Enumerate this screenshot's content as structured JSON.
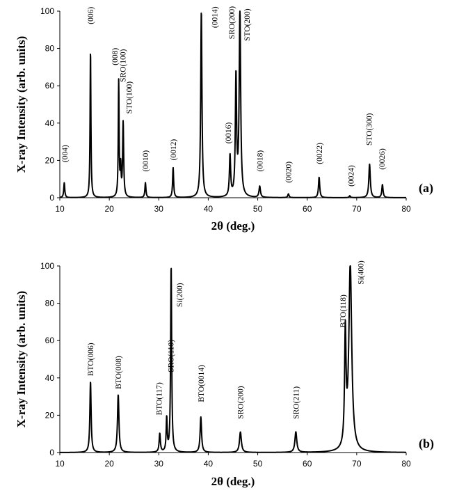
{
  "chart_data": [
    {
      "type": "line",
      "panel_label": "(a)",
      "xlabel": "2θ (deg.)",
      "ylabel": "X-ray Intensity (arb. units)",
      "xlim": [
        10,
        80
      ],
      "ylim": [
        0,
        100
      ],
      "xticks": [
        10,
        20,
        30,
        40,
        50,
        60,
        70,
        80
      ],
      "yticks": [
        0,
        20,
        40,
        60,
        80,
        100
      ],
      "grid": false,
      "peaks": [
        {
          "x": 10.9,
          "y": 8,
          "w": 0.25,
          "label": "(004)",
          "lx": 11.0,
          "ly": 19
        },
        {
          "x": 16.2,
          "y": 79,
          "w": 0.2,
          "label": "(006)",
          "lx": 16.2,
          "ly": 93
        },
        {
          "x": 21.9,
          "y": 62,
          "w": 0.2,
          "label": "(008)",
          "lx": 21.1,
          "ly": 71
        },
        {
          "x": 22.3,
          "y": 15,
          "w": 0.2,
          "label": "",
          "lx": 0,
          "ly": 0
        },
        {
          "x": 22.8,
          "y": 40,
          "w": 0.25,
          "label": "SRO(100)",
          "lx": 22.7,
          "ly": 62
        },
        {
          "x": 22.8,
          "y": 0,
          "w": 0.25,
          "label": "STO(100)",
          "lx": 24.0,
          "ly": 45
        },
        {
          "x": 27.3,
          "y": 8,
          "w": 0.25,
          "label": "(0010)",
          "lx": 27.3,
          "ly": 14
        },
        {
          "x": 32.9,
          "y": 16,
          "w": 0.25,
          "label": "(0012)",
          "lx": 32.9,
          "ly": 20
        },
        {
          "x": 38.6,
          "y": 100,
          "w": 0.3,
          "label": "(0014)",
          "lx": 41.3,
          "ly": 91
        },
        {
          "x": 44.4,
          "y": 22,
          "w": 0.3,
          "label": "(0016)",
          "lx": 44.0,
          "ly": 29
        },
        {
          "x": 45.6,
          "y": 64,
          "w": 0.3,
          "label": "SRO(200)",
          "lx": 44.7,
          "ly": 85
        },
        {
          "x": 46.4,
          "y": 100,
          "w": 0.35,
          "label": "STO(200)",
          "lx": 47.8,
          "ly": 84
        },
        {
          "x": 50.4,
          "y": 6,
          "w": 0.35,
          "label": "(0018)",
          "lx": 50.4,
          "ly": 14
        },
        {
          "x": 56.2,
          "y": 2,
          "w": 0.3,
          "label": "(0020)",
          "lx": 56.2,
          "ly": 8
        },
        {
          "x": 62.4,
          "y": 11,
          "w": 0.3,
          "label": "(0022)",
          "lx": 62.4,
          "ly": 18
        },
        {
          "x": 68.6,
          "y": 1,
          "w": 0.3,
          "label": "(0024)",
          "lx": 68.8,
          "ly": 6
        },
        {
          "x": 72.6,
          "y": 18,
          "w": 0.35,
          "label": "STO(300)",
          "lx": 72.5,
          "ly": 28
        },
        {
          "x": 75.2,
          "y": 7,
          "w": 0.3,
          "label": "(0026)",
          "lx": 75.1,
          "ly": 15
        }
      ]
    },
    {
      "type": "line",
      "panel_label": "(b)",
      "xlabel": "2θ (deg.)",
      "ylabel": "X-ray Intensity (arb. units)",
      "xlim": [
        10,
        80
      ],
      "ylim": [
        0,
        100
      ],
      "xticks": [
        10,
        20,
        30,
        40,
        50,
        60,
        70,
        80
      ],
      "yticks": [
        0,
        20,
        40,
        60,
        80,
        100
      ],
      "grid": false,
      "peaks": [
        {
          "x": 16.2,
          "y": 38,
          "w": 0.3,
          "label": "BTO(006)",
          "lx": 16.2,
          "ly": 41
        },
        {
          "x": 21.8,
          "y": 31,
          "w": 0.35,
          "label": "BTO(008)",
          "lx": 21.8,
          "ly": 34
        },
        {
          "x": 30.2,
          "y": 10,
          "w": 0.3,
          "label": "BTO(117)",
          "lx": 30.0,
          "ly": 20
        },
        {
          "x": 31.6,
          "y": 18,
          "w": 0.25,
          "label": "SRO(110)",
          "lx": 32.4,
          "ly": 43
        },
        {
          "x": 32.5,
          "y": 100,
          "w": 0.25,
          "label": "Si(200)",
          "lx": 34.2,
          "ly": 78
        },
        {
          "x": 38.5,
          "y": 19,
          "w": 0.35,
          "label": "BTO(0014)",
          "lx": 38.5,
          "ly": 27
        },
        {
          "x": 46.5,
          "y": 11,
          "w": 0.45,
          "label": "SRO(200)",
          "lx": 46.5,
          "ly": 18
        },
        {
          "x": 57.7,
          "y": 11,
          "w": 0.45,
          "label": "SRO(211)",
          "lx": 57.7,
          "ly": 18
        },
        {
          "x": 67.7,
          "y": 60,
          "w": 0.35,
          "label": "BTO(118)",
          "lx": 67.2,
          "ly": 67
        },
        {
          "x": 68.7,
          "y": 100,
          "w": 0.7,
          "label": "Si(400)",
          "lx": 70.8,
          "ly": 90
        }
      ]
    }
  ]
}
